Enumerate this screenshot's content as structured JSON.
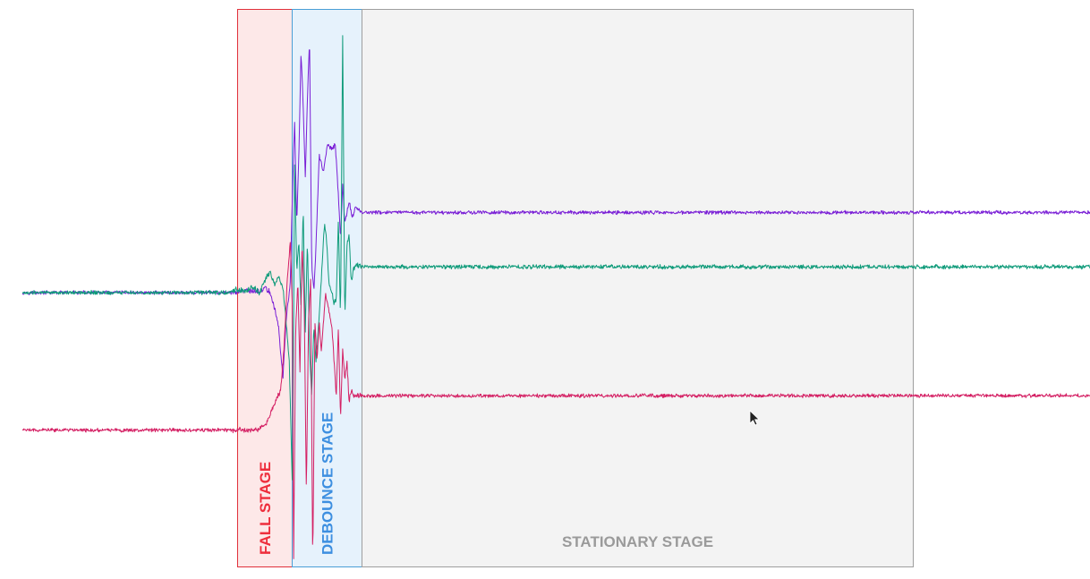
{
  "chart_data": {
    "type": "line",
    "title": "",
    "xlabel": "",
    "ylabel": "",
    "axes_visible": false,
    "grid": false,
    "x_range": [
      0,
      1000
    ],
    "stages": [
      {
        "id": "fall",
        "label": "FALL STAGE",
        "x_start": 201,
        "x_end": 252,
        "fill": "#fde8e8",
        "border": "#e0303a",
        "label_color": "#ee2e3c",
        "label_orientation": "vertical"
      },
      {
        "id": "debounce",
        "label": "DEBOUNCE STAGE",
        "x_start": 252,
        "x_end": 318,
        "fill": "#e6f2fc",
        "border": "#4a9fd6",
        "label_color": "#3d8fe0",
        "label_orientation": "vertical"
      },
      {
        "id": "stationary",
        "label": "STATIONARY STAGE",
        "x_start": 318,
        "x_end": 834,
        "fill": "#f3f3f3",
        "border": "#9e9e9e",
        "label_color": "#9a9a9a",
        "label_orientation": "horizontal"
      }
    ],
    "series": [
      {
        "color": "#7a1fd6",
        "baseline_before": 0.0,
        "baseline_after": 1.4,
        "noise": 0.025,
        "points": [
          [
            0,
            0.0
          ],
          [
            197,
            0.0
          ],
          [
            210,
            0.03
          ],
          [
            222,
            0.02
          ],
          [
            228,
            0.08
          ],
          [
            232,
            0.0
          ],
          [
            236,
            -0.25
          ],
          [
            240,
            -0.6
          ],
          [
            244,
            -1.5
          ],
          [
            247,
            -0.5
          ],
          [
            251,
            0.2
          ],
          [
            253,
            1.8
          ],
          [
            255,
            3.0
          ],
          [
            257,
            1.2
          ],
          [
            259,
            2.4
          ],
          [
            261,
            4.2
          ],
          [
            263,
            3.3
          ],
          [
            265,
            2.0
          ],
          [
            267,
            3.4
          ],
          [
            269,
            4.4
          ],
          [
            271,
            0.5
          ],
          [
            273,
            0.0
          ],
          [
            275,
            0.8
          ],
          [
            278,
            2.4
          ],
          [
            282,
            2.1
          ],
          [
            286,
            2.6
          ],
          [
            290,
            2.5
          ],
          [
            293,
            2.6
          ],
          [
            296,
            1.7
          ],
          [
            298,
            0.9
          ],
          [
            300,
            1.9
          ],
          [
            302,
            1.2
          ],
          [
            304,
            1.4
          ],
          [
            306,
            1.6
          ],
          [
            309,
            1.3
          ],
          [
            312,
            1.5
          ],
          [
            318,
            1.4
          ],
          [
            1000,
            1.4
          ]
        ]
      },
      {
        "color": "#0f9b7a",
        "baseline_before": 0.0,
        "baseline_after": 0.45,
        "noise": 0.028,
        "points": [
          [
            0,
            0.0
          ],
          [
            190,
            0.0
          ],
          [
            200,
            0.05
          ],
          [
            210,
            0.02
          ],
          [
            215,
            0.1
          ],
          [
            222,
            0.0
          ],
          [
            228,
            0.25
          ],
          [
            232,
            0.35
          ],
          [
            236,
            0.15
          ],
          [
            240,
            0.3
          ],
          [
            244,
            0.08
          ],
          [
            247,
            -0.5
          ],
          [
            250,
            -1.2
          ],
          [
            253,
            -3.5
          ],
          [
            255,
            2.2
          ],
          [
            257,
            0.4
          ],
          [
            259,
            0.9
          ],
          [
            261,
            -0.3
          ],
          [
            263,
            1.5
          ],
          [
            265,
            -0.7
          ],
          [
            267,
            0.9
          ],
          [
            269,
            -1.0
          ],
          [
            271,
            -1.8
          ],
          [
            273,
            -0.6
          ],
          [
            275,
            -1.2
          ],
          [
            277,
            -0.7
          ],
          [
            279,
            -0.1
          ],
          [
            281,
            0.6
          ],
          [
            283,
            1.2
          ],
          [
            285,
            0.9
          ],
          [
            287,
            0.2
          ],
          [
            290,
            0.0
          ],
          [
            292,
            -0.2
          ],
          [
            294,
            -0.1
          ],
          [
            296,
            1.3
          ],
          [
            298,
            -0.5
          ],
          [
            300,
            4.5
          ],
          [
            302,
            -0.5
          ],
          [
            304,
            0.8
          ],
          [
            306,
            1.0
          ],
          [
            308,
            0.2
          ],
          [
            310,
            0.4
          ],
          [
            313,
            0.5
          ],
          [
            318,
            0.45
          ],
          [
            1000,
            0.45
          ]
        ]
      },
      {
        "color": "#d41f63",
        "baseline_before": -2.4,
        "baseline_after": -1.8,
        "noise": 0.025,
        "points": [
          [
            0,
            -2.4
          ],
          [
            220,
            -2.4
          ],
          [
            228,
            -2.3
          ],
          [
            234,
            -2.05
          ],
          [
            238,
            -1.85
          ],
          [
            242,
            -1.7
          ],
          [
            245,
            -1.0
          ],
          [
            248,
            0.2
          ],
          [
            251,
            0.9
          ],
          [
            253,
            -0.3
          ],
          [
            254,
            -4.8
          ],
          [
            256,
            -0.6
          ],
          [
            258,
            0.2
          ],
          [
            260,
            -1.4
          ],
          [
            262,
            0.9
          ],
          [
            264,
            -0.2
          ],
          [
            266,
            -3.5
          ],
          [
            268,
            -0.5
          ],
          [
            270,
            0.2
          ],
          [
            272,
            -4.8
          ],
          [
            274,
            -0.5
          ],
          [
            276,
            -1.2
          ],
          [
            278,
            -0.5
          ],
          [
            280,
            -1.0
          ],
          [
            282,
            -0.5
          ],
          [
            284,
            0.0
          ],
          [
            287,
            -0.3
          ],
          [
            290,
            -0.6
          ],
          [
            292,
            -1.2
          ],
          [
            294,
            -1.8
          ],
          [
            296,
            -0.6
          ],
          [
            298,
            -2.2
          ],
          [
            300,
            -1.0
          ],
          [
            302,
            -1.5
          ],
          [
            304,
            -1.2
          ],
          [
            306,
            -1.9
          ],
          [
            308,
            -1.7
          ],
          [
            310,
            -1.8
          ],
          [
            318,
            -1.8
          ],
          [
            1000,
            -1.8
          ]
        ]
      }
    ]
  }
}
